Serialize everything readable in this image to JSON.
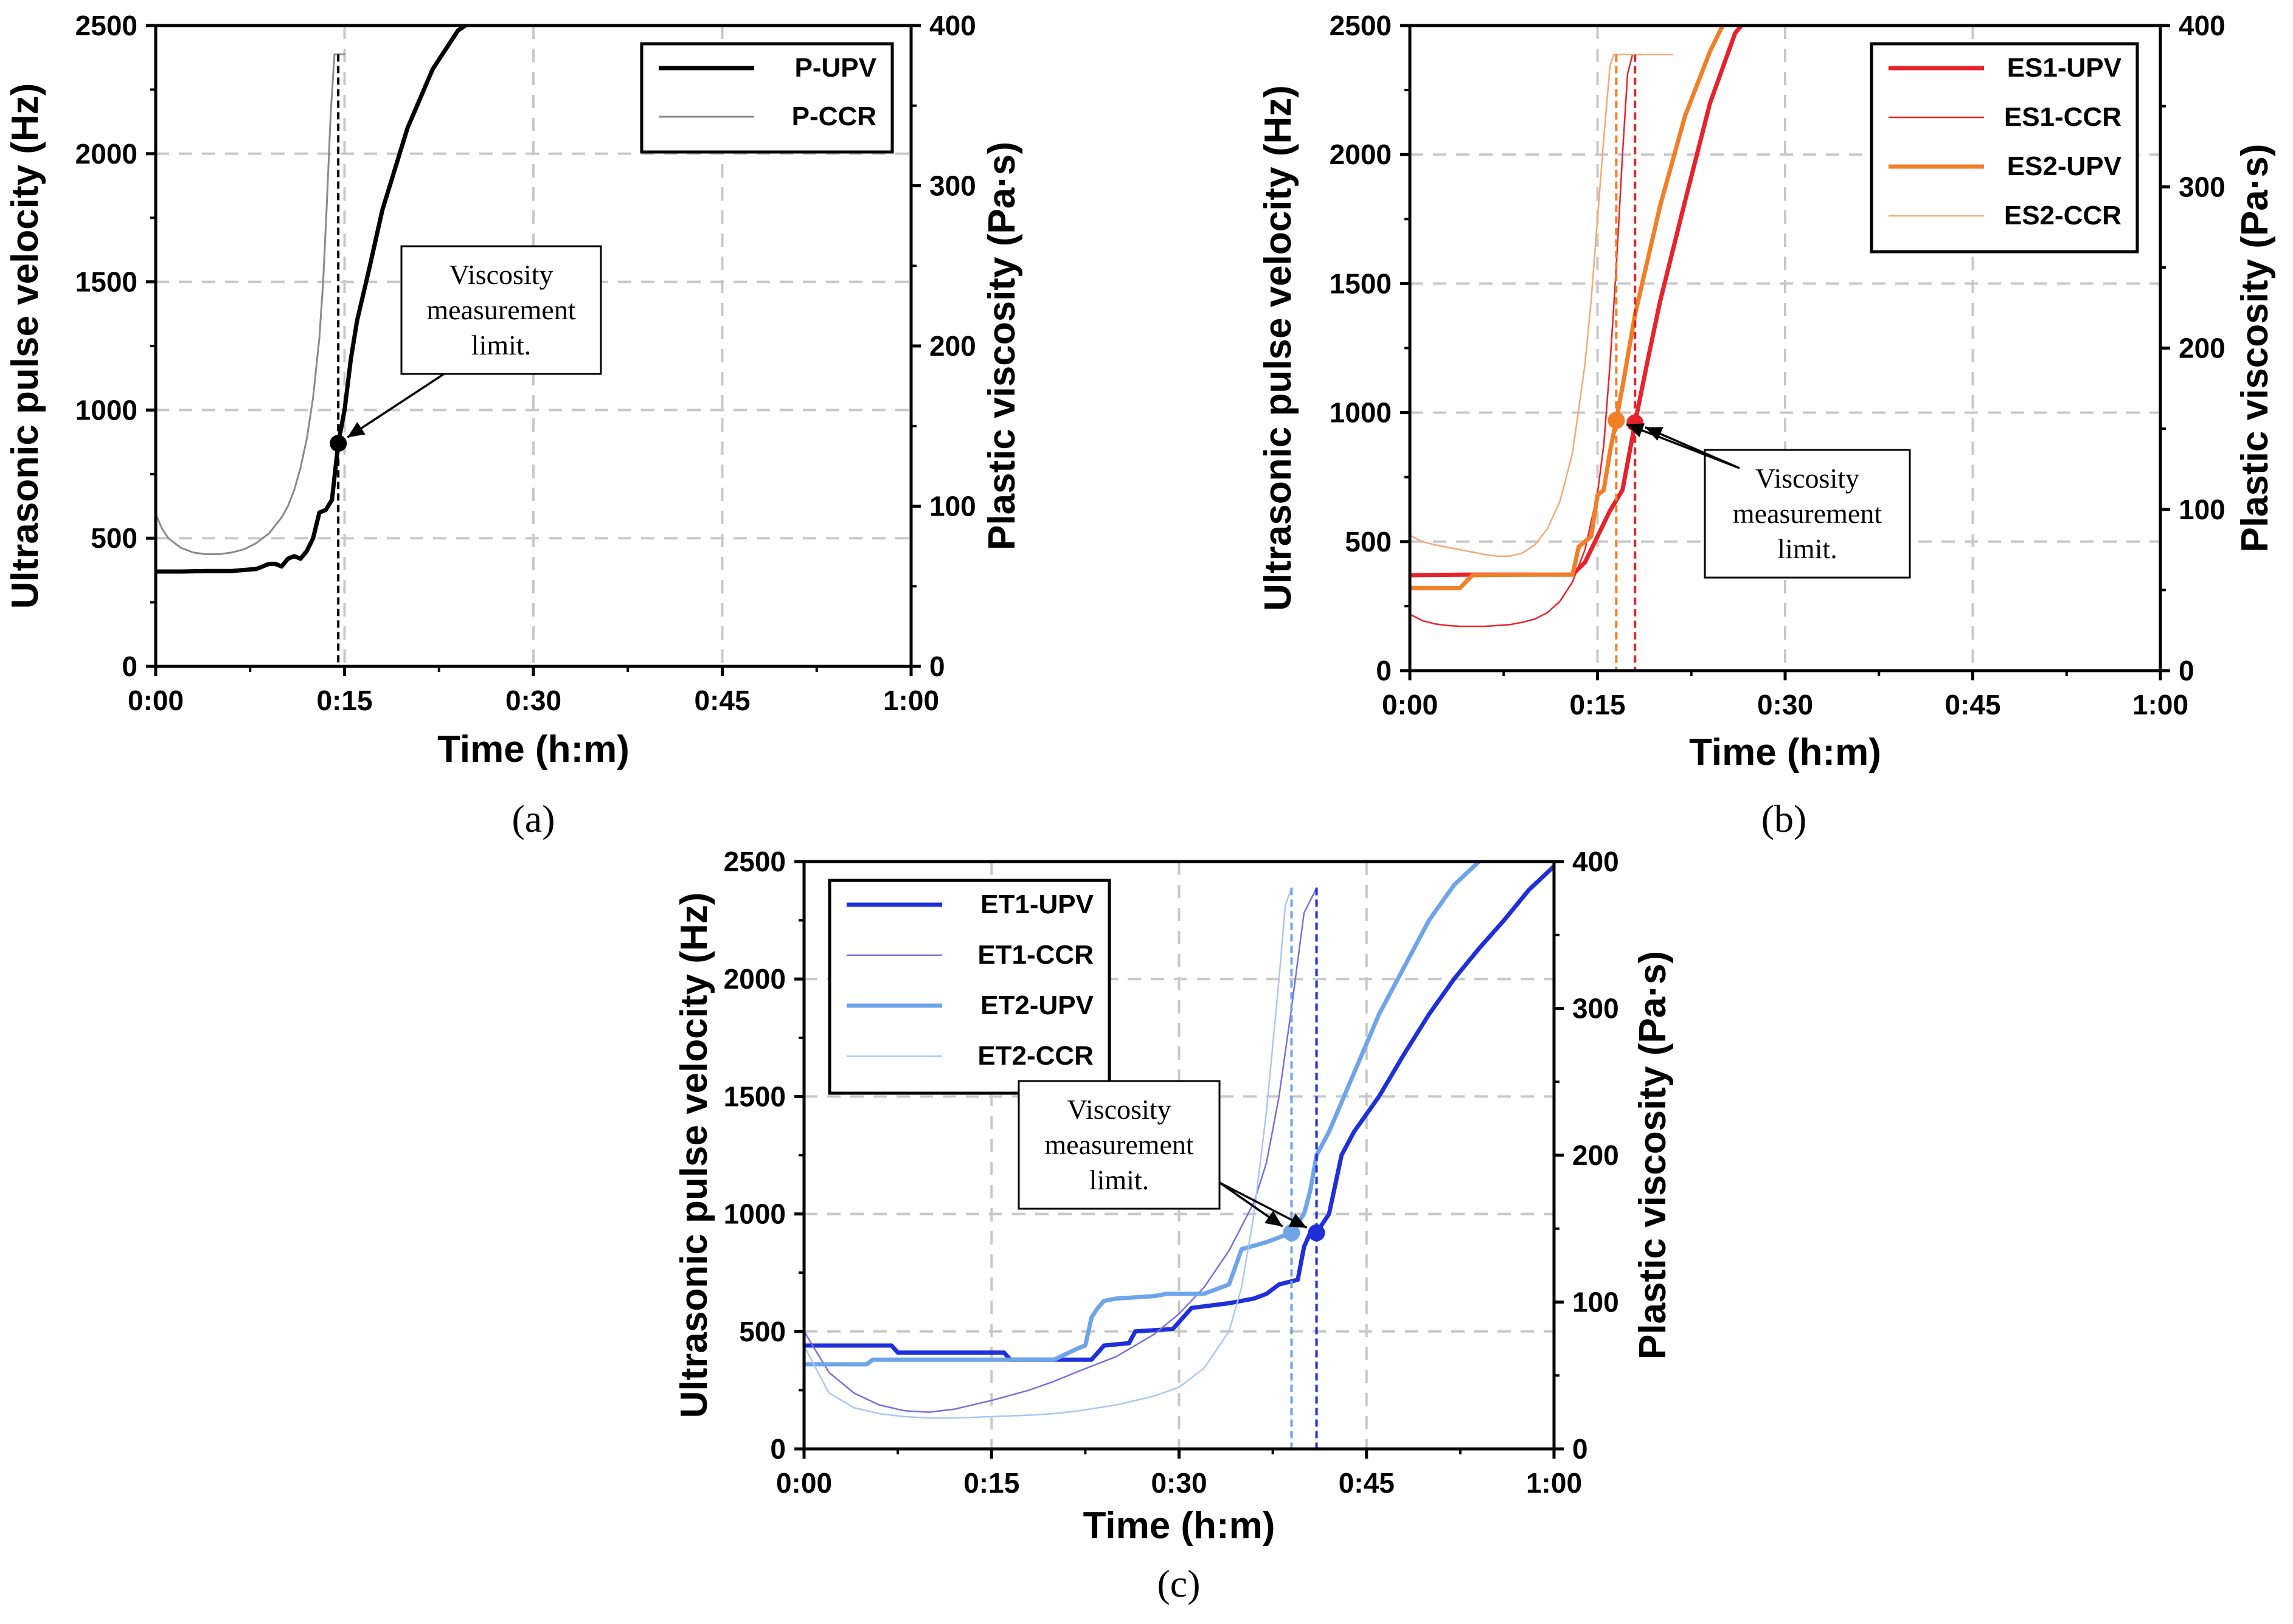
{
  "chart_data": [
    {
      "type": "line",
      "panel_label": "(a)",
      "xlabel": "Time (h:m)",
      "ylabel": "Ultrasonic pulse velocity (Hz)",
      "y2label": "Plastic viscosity (Pa·s)",
      "xlim": [
        0,
        60
      ],
      "ylim": [
        0,
        2500
      ],
      "y2lim": [
        0,
        400
      ],
      "x_ticks": [
        0,
        15,
        30,
        45,
        60
      ],
      "x_tick_labels": [
        "0:00",
        "0:15",
        "0:30",
        "0:45",
        "1:00"
      ],
      "y_ticks": [
        0,
        500,
        1000,
        1500,
        2000,
        2500
      ],
      "y_tick_labels": [
        "0",
        "500",
        "1000",
        "1500",
        "2000",
        "2500"
      ],
      "y2_ticks": [
        0,
        100,
        200,
        300,
        400
      ],
      "y2_tick_labels": [
        "0",
        "100",
        "200",
        "300",
        "400"
      ],
      "grid": true,
      "legend_position": "top-right",
      "annotation": {
        "lines": [
          "Viscosity",
          "measurement",
          "limit."
        ]
      },
      "limit_points": [
        {
          "x": 14.5,
          "y": 870,
          "color": "#000000"
        }
      ],
      "vlines": [
        {
          "x": 14.5,
          "color": "#000000"
        }
      ],
      "series": [
        {
          "name": "P-UPV",
          "axis": "left",
          "color": "#000000",
          "width": 7,
          "x": [
            0,
            2,
            4,
            6,
            8,
            8.5,
            9,
            9.5,
            10,
            10.5,
            11,
            11.5,
            12,
            12.5,
            13,
            13.5,
            14,
            14.5,
            15,
            15.5,
            16,
            17,
            18,
            20,
            22,
            24,
            24.6
          ],
          "y": [
            370,
            370,
            372,
            372,
            380,
            390,
            400,
            400,
            390,
            420,
            430,
            420,
            450,
            500,
            600,
            610,
            650,
            870,
            1000,
            1200,
            1350,
            1560,
            1780,
            2100,
            2330,
            2480,
            2500
          ]
        },
        {
          "name": "P-CCR",
          "axis": "right",
          "color": "#8a8a8a",
          "width": 3,
          "x": [
            0,
            0.5,
            1,
            2,
            3,
            4,
            5,
            6,
            7,
            8,
            9,
            10,
            10.5,
            11,
            11.5,
            12,
            12.5,
            13,
            13.3,
            13.6,
            13.9,
            14.2,
            14.6,
            15
          ],
          "y": [
            95,
            86,
            80,
            74,
            71,
            70,
            70,
            71,
            73,
            77,
            83,
            93,
            100,
            110,
            124,
            142,
            168,
            205,
            240,
            290,
            345,
            382,
            382,
            382
          ]
        }
      ]
    },
    {
      "type": "line",
      "panel_label": "(b)",
      "xlabel": "Time (h:m)",
      "ylabel": "Ultrasonic pulse velocity (Hz)",
      "y2label": "Plastic viscosity (Pa·s)",
      "xlim": [
        0,
        60
      ],
      "ylim": [
        0,
        2500
      ],
      "y2lim": [
        0,
        400
      ],
      "x_ticks": [
        0,
        15,
        30,
        45,
        60
      ],
      "x_tick_labels": [
        "0:00",
        "0:15",
        "0:30",
        "0:45",
        "1:00"
      ],
      "y_ticks": [
        0,
        500,
        1000,
        1500,
        2000,
        2500
      ],
      "y_tick_labels": [
        "0",
        "500",
        "1000",
        "1500",
        "2000",
        "2500"
      ],
      "y2_ticks": [
        0,
        100,
        200,
        300,
        400
      ],
      "y2_tick_labels": [
        "0",
        "100",
        "200",
        "300",
        "400"
      ],
      "grid": true,
      "legend_position": "top-right",
      "annotation": {
        "lines": [
          "Viscosity",
          "measurement",
          "limit."
        ]
      },
      "limit_points": [
        {
          "x": 16.5,
          "y": 970,
          "color": "#f07f28"
        },
        {
          "x": 18,
          "y": 960,
          "color": "#e8222b"
        }
      ],
      "vlines": [
        {
          "x": 16.5,
          "color": "#f07f28"
        },
        {
          "x": 18,
          "color": "#e8222b"
        }
      ],
      "series": [
        {
          "name": "ES1-UPV",
          "axis": "left",
          "color": "#e8222b",
          "width": 7,
          "x": [
            0,
            5,
            10,
            13,
            14,
            15,
            16,
            17,
            18,
            19,
            20,
            22,
            24,
            26,
            26.5
          ],
          "y": [
            370,
            372,
            372,
            372,
            420,
            520,
            620,
            700,
            960,
            1200,
            1430,
            1820,
            2200,
            2470,
            2500
          ]
        },
        {
          "name": "ES1-CCR",
          "axis": "right",
          "color": "#e8222b",
          "width": 2.5,
          "x": [
            0,
            1,
            2,
            3,
            4,
            6,
            8,
            9,
            10,
            11,
            12,
            13,
            14,
            15,
            15.5,
            16,
            16.5,
            17,
            17.4,
            17.8
          ],
          "y": [
            35,
            31,
            29,
            28,
            27.5,
            27.5,
            28.5,
            30,
            32,
            36,
            43,
            55,
            75,
            110,
            140,
            190,
            250,
            320,
            370,
            382
          ]
        },
        {
          "name": "ES2-UPV",
          "axis": "left",
          "color": "#f07f28",
          "width": 7,
          "x": [
            0,
            4,
            5,
            10,
            13,
            13.5,
            14,
            14.5,
            15,
            15.5,
            16,
            16.5,
            17,
            18,
            20,
            22,
            24,
            25
          ],
          "y": [
            320,
            320,
            370,
            372,
            372,
            480,
            500,
            520,
            680,
            700,
            850,
            970,
            1100,
            1380,
            1800,
            2150,
            2400,
            2500
          ]
        },
        {
          "name": "ES2-CCR",
          "axis": "right",
          "color": "#f5a977",
          "width": 2.5,
          "x": [
            0,
            1,
            2,
            4,
            6,
            7,
            8,
            9,
            10,
            11,
            12,
            13,
            14,
            14.5,
            15,
            15.5,
            16,
            16.3,
            16.6,
            17,
            21
          ],
          "y": [
            84,
            80,
            78,
            75,
            72,
            71,
            71,
            73,
            78,
            88,
            105,
            135,
            190,
            230,
            280,
            330,
            375,
            382,
            382,
            382,
            382
          ]
        }
      ]
    },
    {
      "type": "line",
      "panel_label": "(c)",
      "xlabel": "Time (h:m)",
      "ylabel": "Ultrasonic pulse velocity (Hz)",
      "y2label": "Plastic viscosity (Pa·s)",
      "xlim": [
        0,
        60
      ],
      "ylim": [
        0,
        2500
      ],
      "y2lim": [
        0,
        400
      ],
      "x_ticks": [
        0,
        15,
        30,
        45,
        60
      ],
      "x_tick_labels": [
        "0:00",
        "0:15",
        "0:30",
        "0:45",
        "1:00"
      ],
      "y_ticks": [
        0,
        500,
        1000,
        1500,
        2000,
        2500
      ],
      "y_tick_labels": [
        "0",
        "500",
        "1000",
        "1500",
        "2000",
        "2500"
      ],
      "y2_ticks": [
        0,
        100,
        200,
        300,
        400
      ],
      "y2_tick_labels": [
        "0",
        "100",
        "200",
        "300",
        "400"
      ],
      "grid": true,
      "legend_position": "top-left",
      "annotation": {
        "lines": [
          "Viscosity",
          "measurement",
          "limit."
        ]
      },
      "limit_points": [
        {
          "x": 39,
          "y": 920,
          "color": "#6ea5e8"
        },
        {
          "x": 41,
          "y": 920,
          "color": "#1f2fd9"
        }
      ],
      "vlines": [
        {
          "x": 39,
          "color": "#6ea5e8"
        },
        {
          "x": 41,
          "color": "#1f2fd9"
        }
      ],
      "series": [
        {
          "name": "ET1-UPV",
          "axis": "left",
          "color": "#1f2fd9",
          "width": 7,
          "x": [
            0,
            7,
            7.5,
            16,
            16.5,
            23,
            24,
            26,
            26.5,
            29.5,
            31,
            34,
            36,
            37,
            38,
            39.5,
            40,
            40.5,
            41,
            42,
            43,
            44,
            46,
            48,
            50,
            52,
            54,
            56,
            58,
            60
          ],
          "y": [
            440,
            440,
            410,
            410,
            380,
            380,
            440,
            450,
            500,
            510,
            600,
            620,
            640,
            660,
            700,
            720,
            860,
            920,
            920,
            1000,
            1250,
            1350,
            1500,
            1680,
            1850,
            2000,
            2130,
            2250,
            2380,
            2480
          ]
        },
        {
          "name": "ET1-CCR",
          "axis": "right",
          "color": "#7a6ee0",
          "width": 2.5,
          "x": [
            0,
            2,
            4,
            6,
            8,
            10,
            12,
            15,
            18,
            20,
            22,
            25,
            28,
            30,
            32,
            34,
            36,
            37,
            38,
            39,
            40,
            41
          ],
          "y": [
            80,
            52,
            38,
            30,
            26,
            25,
            27,
            33,
            40,
            46,
            53,
            63,
            78,
            92,
            110,
            135,
            168,
            195,
            240,
            300,
            365,
            382
          ]
        },
        {
          "name": "ET2-UPV",
          "axis": "left",
          "color": "#6ea5e8",
          "width": 7,
          "x": [
            0,
            5,
            5.5,
            20,
            22,
            22.5,
            23,
            23.5,
            24,
            25,
            28,
            29,
            32,
            34,
            35,
            37,
            38,
            39,
            40,
            40.5,
            41,
            42,
            44,
            46,
            48,
            50,
            52,
            54
          ],
          "y": [
            360,
            360,
            380,
            380,
            430,
            440,
            560,
            600,
            630,
            640,
            650,
            660,
            660,
            700,
            850,
            880,
            900,
            920,
            1000,
            1100,
            1250,
            1350,
            1600,
            1850,
            2050,
            2250,
            2400,
            2500
          ]
        },
        {
          "name": "ET2-CCR",
          "axis": "right",
          "color": "#a8c8f0",
          "width": 2.5,
          "x": [
            0,
            2,
            4,
            6,
            8,
            10,
            12,
            15,
            18,
            20,
            22,
            25,
            28,
            30,
            32,
            34,
            35,
            36,
            37,
            38,
            38.5,
            39
          ],
          "y": [
            70,
            38,
            28,
            24,
            22,
            21,
            21,
            22,
            23,
            24,
            26,
            30,
            36,
            42,
            55,
            80,
            110,
            160,
            230,
            320,
            370,
            382
          ]
        }
      ]
    }
  ]
}
